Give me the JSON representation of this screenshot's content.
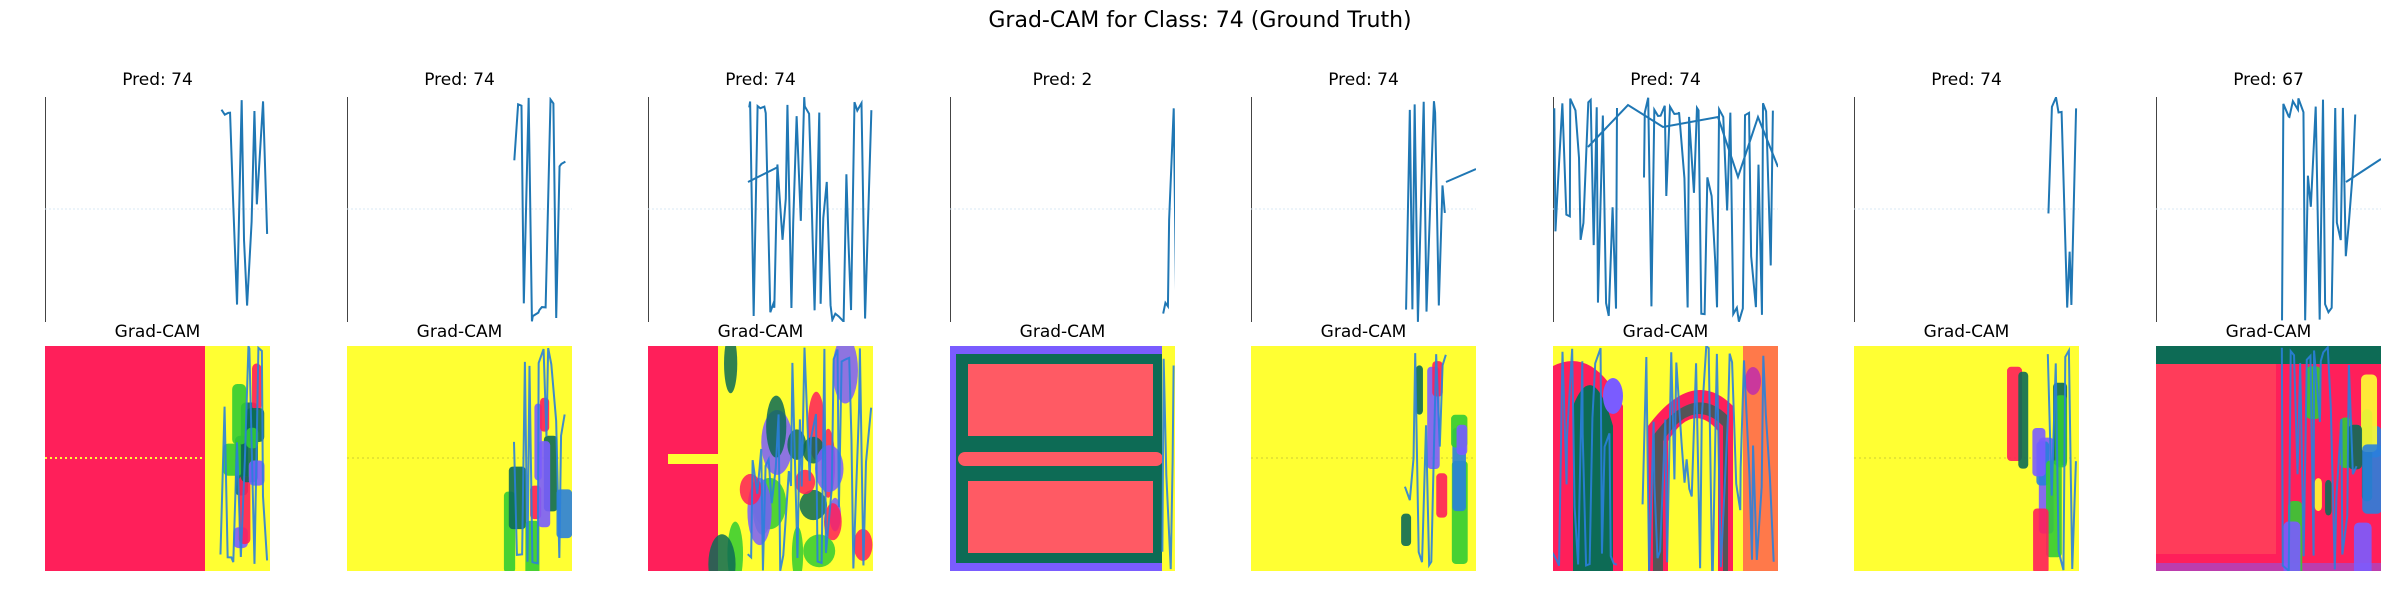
{
  "figure": {
    "suptitle": "Grad-CAM for Class: 74 (Ground Truth)"
  },
  "chart_data": {
    "type": "grid",
    "title": "Grad-CAM for Class: 74 (Ground Truth)",
    "rows": 2,
    "cols": 8,
    "panels": [
      {
        "index": 0,
        "pred_title": "Pred: 74",
        "cam_title": "Grad-CAM",
        "pred": 74,
        "cam_scheme": "magenta"
      },
      {
        "index": 1,
        "pred_title": "Pred: 74",
        "cam_title": "Grad-CAM",
        "pred": 74,
        "cam_scheme": "yellow"
      },
      {
        "index": 2,
        "pred_title": "Pred: 74",
        "cam_title": "Grad-CAM",
        "pred": 74,
        "cam_scheme": "mixed"
      },
      {
        "index": 3,
        "pred_title": "Pred: 2",
        "cam_title": "Grad-CAM",
        "pred": 2,
        "cam_scheme": "bars"
      },
      {
        "index": 4,
        "pred_title": "Pred: 74",
        "cam_title": "Grad-CAM",
        "pred": 74,
        "cam_scheme": "yellow"
      },
      {
        "index": 5,
        "pred_title": "Pred: 74",
        "cam_title": "Grad-CAM",
        "pred": 74,
        "cam_scheme": "arches"
      },
      {
        "index": 6,
        "pred_title": "Pred: 74",
        "cam_title": "Grad-CAM",
        "pred": 74,
        "cam_scheme": "yellow"
      },
      {
        "index": 7,
        "pred_title": "Pred: 67",
        "cam_title": "Grad-CAM",
        "pred": 67,
        "cam_scheme": "red"
      }
    ]
  },
  "colors": {
    "line": "#1f77b4",
    "magenta": "#ff1f5a",
    "yellow": "#ffff33",
    "salmon": "#ff5a64",
    "dark_green": "#0d6b55",
    "green": "#33cc33",
    "violet": "#7a5cff",
    "blue": "#2a7fdb"
  }
}
